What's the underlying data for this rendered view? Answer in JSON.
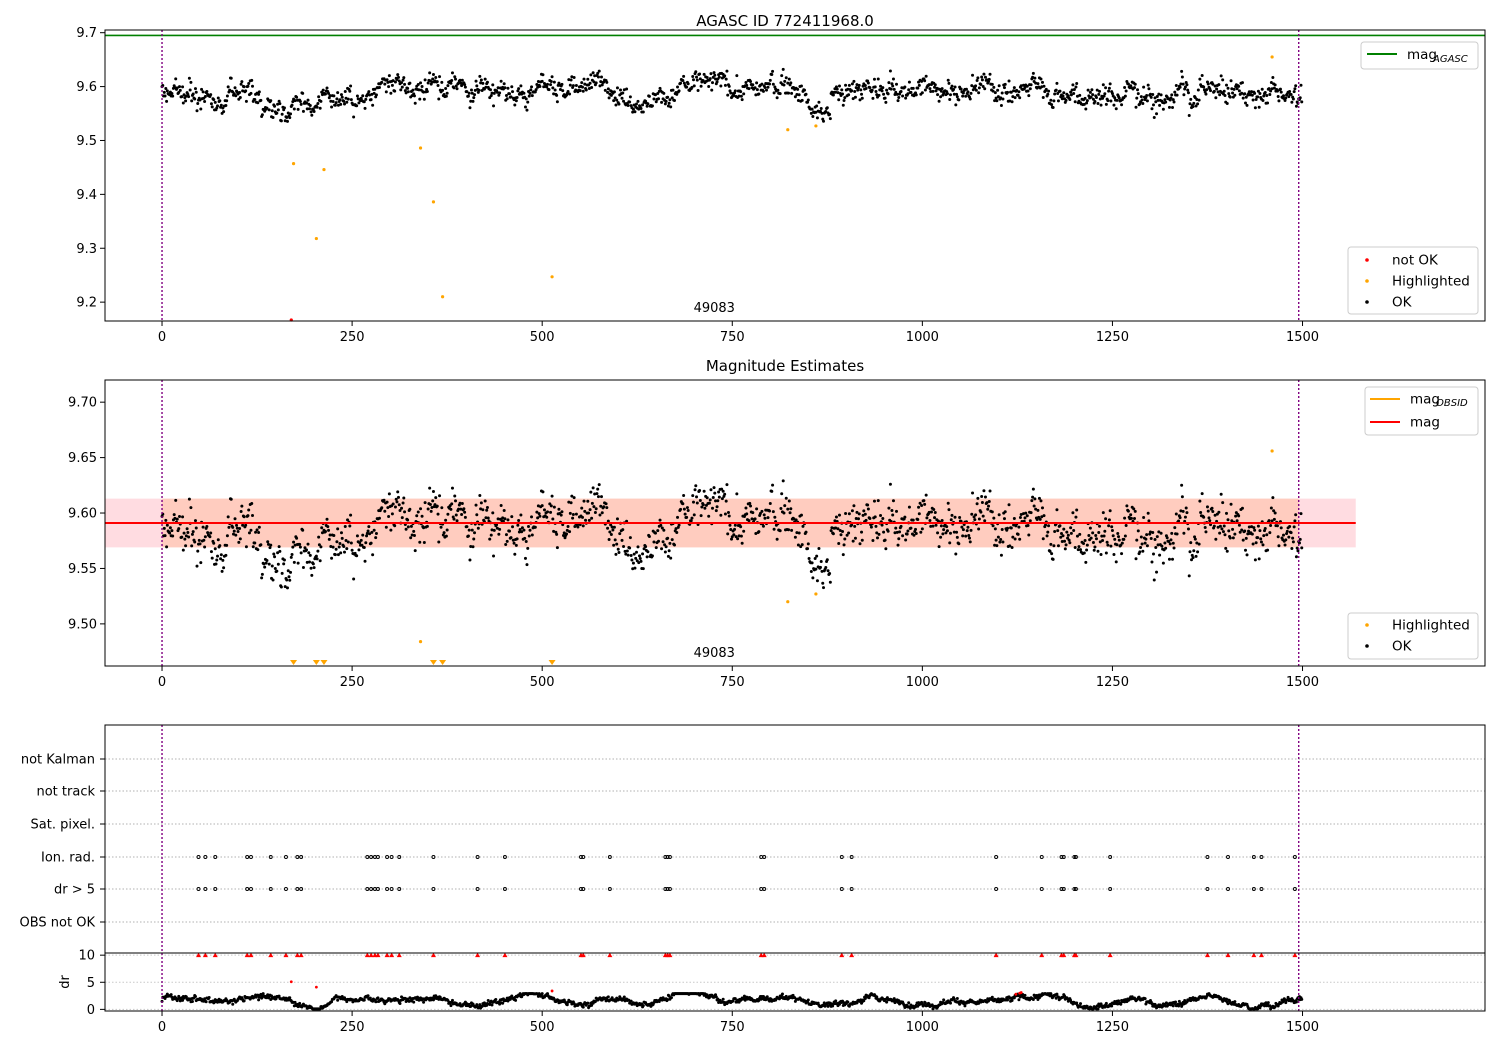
{
  "chart_data": [
    {
      "type": "scatter",
      "title": "AGASC ID 772411968.0",
      "xlim": [
        -75,
        1740
      ],
      "ylim": [
        9.165,
        9.705
      ],
      "xticks": [
        0,
        250,
        500,
        750,
        1000,
        1250,
        1500
      ],
      "yticks": [
        9.2,
        9.3,
        9.4,
        9.5,
        9.6,
        9.7
      ],
      "vlines": [
        0,
        1495
      ],
      "hline": {
        "name": "mag_AGASC",
        "value": 9.695,
        "color": "#008000"
      },
      "annotation": {
        "text": "49083",
        "x": 750
      },
      "legend_line": {
        "name": "mag",
        "sub": "AGASC",
        "color": "#008000"
      },
      "legend_scatter": [
        {
          "name": "not OK",
          "color": "#ff0000"
        },
        {
          "name": "Highlighted",
          "color": "#ffa500"
        },
        {
          "name": "OK",
          "color": "#000000"
        }
      ],
      "series": [
        {
          "name": "Highlighted",
          "color": "#ffa500",
          "points": [
            [
              173,
              9.457
            ],
            [
              213,
              9.446
            ],
            [
              203,
              9.318
            ],
            [
              340,
              9.486
            ],
            [
              357,
              9.386
            ],
            [
              369,
              9.21
            ],
            [
              513,
              9.247
            ],
            [
              823,
              9.52
            ],
            [
              860,
              9.527
            ],
            [
              1460,
              9.655
            ]
          ]
        },
        {
          "name": "not OK",
          "color": "#ff0000",
          "points": [
            [
              170,
              9.165
            ]
          ]
        }
      ],
      "ok_profile": {
        "n": 1500,
        "base": 9.591,
        "noise": 0.016
      }
    },
    {
      "type": "scatter",
      "title": "Magnitude Estimates",
      "xlim": [
        -75,
        1740
      ],
      "ylim": [
        9.462,
        9.72
      ],
      "xticks": [
        0,
        250,
        500,
        750,
        1000,
        1250,
        1500
      ],
      "yticks": [
        9.5,
        9.55,
        9.6,
        9.65,
        9.7
      ],
      "ytick_labels": [
        "9.50",
        "9.55",
        "9.60",
        "9.65",
        "9.70"
      ],
      "vlines": [
        0,
        1495
      ],
      "band": {
        "low": 9.569,
        "high": 9.613,
        "x_end": 1570
      },
      "hline": {
        "name": "mag",
        "value": 9.591,
        "color": "#ff0000",
        "x_end": 1570
      },
      "annotation": {
        "text": "49083",
        "x": 750
      },
      "legend_lines": [
        {
          "name": "mag",
          "sub": "OBSID",
          "color": "#ffa500"
        },
        {
          "name": "mag",
          "sub": "",
          "color": "#ff0000"
        }
      ],
      "legend_scatter": [
        {
          "name": "Highlighted",
          "color": "#ffa500"
        },
        {
          "name": "OK",
          "color": "#000000"
        }
      ],
      "series": [
        {
          "name": "Highlighted",
          "color": "#ffa500",
          "points": [
            [
              340,
              9.484
            ],
            [
              823,
              9.52
            ],
            [
              860,
              9.527
            ],
            [
              1460,
              9.656
            ]
          ]
        }
      ],
      "off_scale_markers": [
        173,
        203,
        213,
        357,
        369,
        513
      ]
    },
    {
      "type": "scatter",
      "title": "",
      "xlim": [
        -75,
        1740
      ],
      "categories": [
        "not Kalman",
        "not track",
        "Sat. pixel.",
        "Ion. rad.",
        "dr > 5",
        "OBS not OK"
      ],
      "flag_times": [
        48,
        57,
        70,
        112,
        117,
        143,
        163,
        178,
        183,
        270,
        275,
        280,
        284,
        296,
        302,
        312,
        357,
        415,
        451,
        551,
        554,
        589,
        662,
        665,
        668,
        788,
        792,
        894,
        907,
        1097,
        1157,
        1183,
        1186,
        1200,
        1202,
        1247,
        1375,
        1402,
        1436,
        1446,
        1490
      ],
      "dr_panel": {
        "ylabel": "dr",
        "ylim": [
          -0.3,
          10.4
        ],
        "yticks": [
          0,
          5,
          10
        ],
        "clip": 10,
        "outliers": [
          [
            170,
            5.1
          ],
          [
            203,
            4.1
          ],
          [
            513,
            3.4
          ],
          [
            1123,
            2.8
          ],
          [
            1128,
            3.0
          ],
          [
            1130,
            3.1
          ]
        ],
        "ok_profile": {
          "n": 1500,
          "base": 1.6,
          "noise": 0.4
        }
      },
      "xticks": [
        0,
        250,
        500,
        750,
        1000,
        1250,
        1500
      ]
    }
  ]
}
